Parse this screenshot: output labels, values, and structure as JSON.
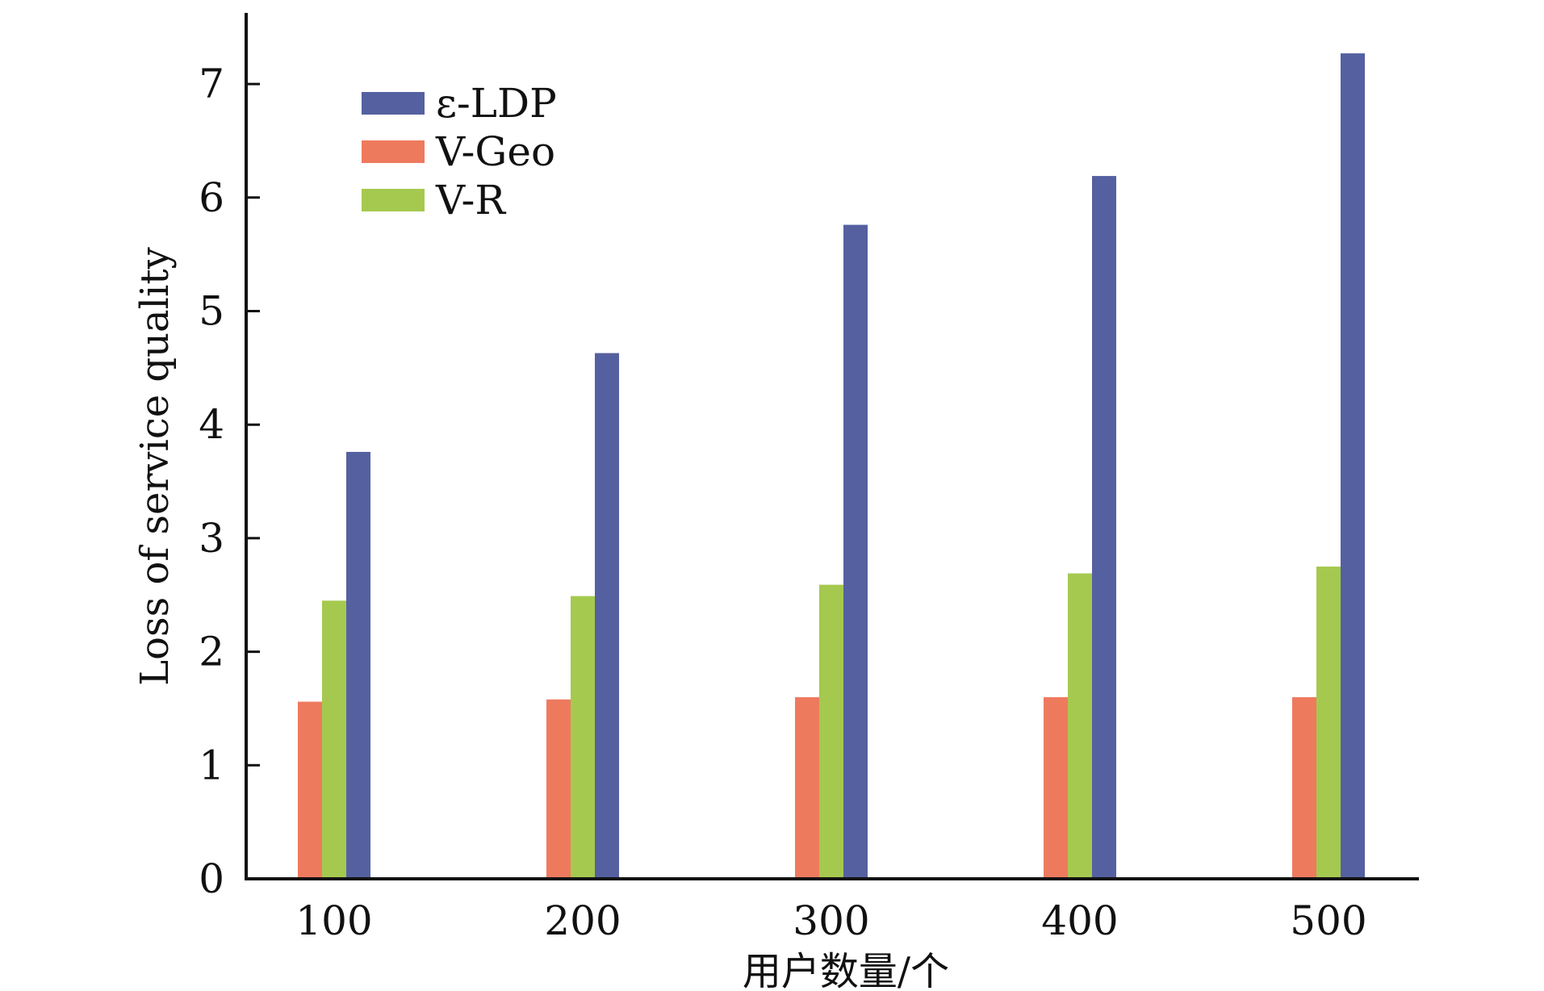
{
  "chart_data": {
    "type": "bar",
    "title": "",
    "xlabel": "用户数量/个",
    "ylabel": "Loss of service quality",
    "categories": [
      "100",
      "200",
      "300",
      "400",
      "500"
    ],
    "series": [
      {
        "name": "V-Geo",
        "color": "#ee7a5e",
        "values": [
          1.56,
          1.58,
          1.6,
          1.6,
          1.6
        ]
      },
      {
        "name": "V-R",
        "color": "#a5c94f",
        "values": [
          2.45,
          2.49,
          2.59,
          2.69,
          2.75
        ]
      },
      {
        "name": "ε-LDP",
        "color": "#5560a1",
        "values": [
          3.76,
          4.63,
          5.76,
          6.19,
          7.27
        ]
      }
    ],
    "legend_order": [
      "ε-LDP",
      "V-Geo",
      "V-R"
    ],
    "ylim": [
      0,
      7.6
    ],
    "yticks": [
      0,
      1,
      2,
      3,
      4,
      5,
      6,
      7
    ],
    "legend_position": "top-left",
    "grid": false
  }
}
